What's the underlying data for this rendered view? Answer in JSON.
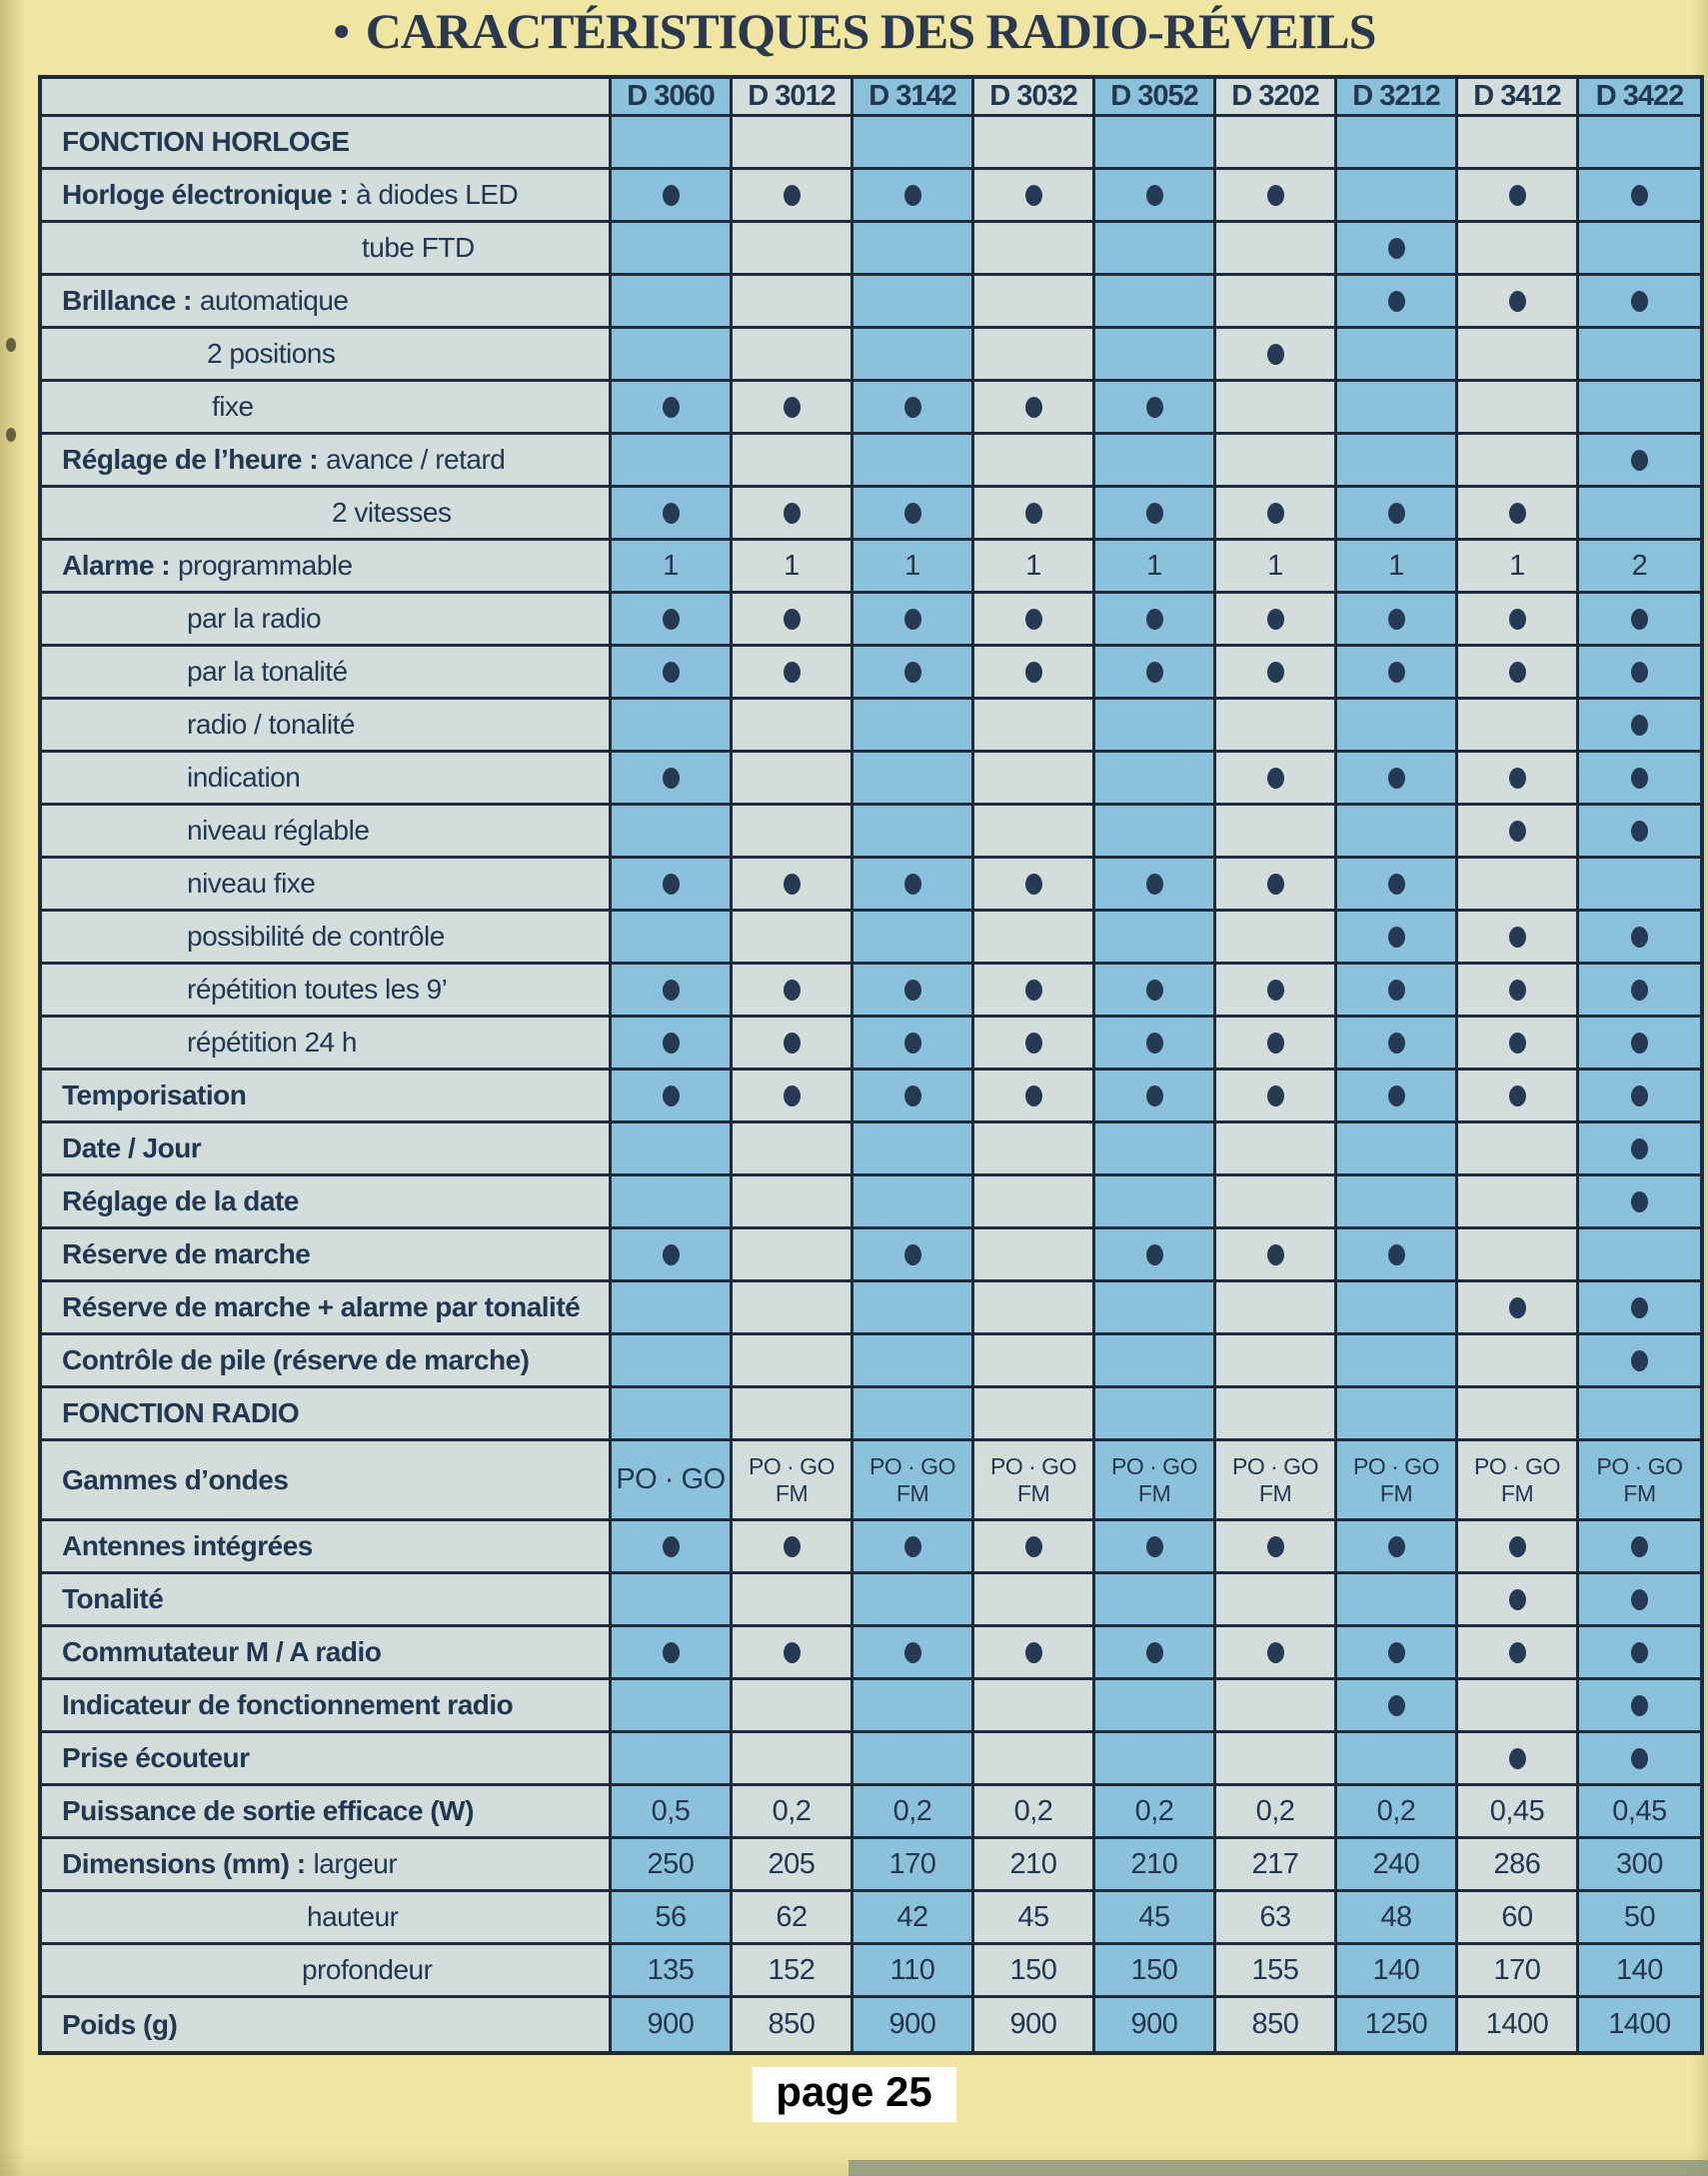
{
  "page": {
    "title": "CARACTÉRISTIQUES DES RADIO-RÉVEILS",
    "title_bullet": "●",
    "page_number": "page 25"
  },
  "table": {
    "columns": [
      "D 3060",
      "D 3012",
      "D 3142",
      "D 3032",
      "D 3052",
      "D 3202",
      "D 3212",
      "D 3412",
      "D 3422"
    ],
    "dot_symbol": "●",
    "rows": [
      {
        "section": true,
        "label_bold": "FONCTION HORLOGE",
        "cells": [
          "",
          "",
          "",
          "",
          "",
          "",
          "",
          "",
          ""
        ]
      },
      {
        "label_bold": "Horloge électronique :",
        "label": "à diodes LED",
        "cells": [
          "●",
          "●",
          "●",
          "●",
          "●",
          "●",
          "",
          "●",
          "●"
        ]
      },
      {
        "label": "tube FTD",
        "indent": 300,
        "cells": [
          "",
          "",
          "",
          "",
          "",
          "",
          "●",
          "",
          ""
        ]
      },
      {
        "label_bold": "Brillance :",
        "label": "automatique",
        "cells": [
          "",
          "",
          "",
          "",
          "",
          "",
          "●",
          "●",
          "●"
        ]
      },
      {
        "label": "2 positions",
        "indent": 145,
        "cells": [
          "",
          "",
          "",
          "",
          "",
          "●",
          "",
          "",
          ""
        ]
      },
      {
        "label": "fixe",
        "indent": 150,
        "cells": [
          "●",
          "●",
          "●",
          "●",
          "●",
          "",
          "",
          "",
          ""
        ]
      },
      {
        "label_bold": "Réglage de l’heure :",
        "label": "avance / retard",
        "cells": [
          "",
          "",
          "",
          "",
          "",
          "",
          "",
          "",
          "●"
        ]
      },
      {
        "label": "2 vitesses",
        "indent": 270,
        "cells": [
          "●",
          "●",
          "●",
          "●",
          "●",
          "●",
          "●",
          "●",
          ""
        ]
      },
      {
        "label_bold": "Alarme :",
        "label": "programmable",
        "cells": [
          "1",
          "1",
          "1",
          "1",
          "1",
          "1",
          "1",
          "1",
          "2"
        ]
      },
      {
        "label": "par la radio",
        "indent": 125,
        "cells": [
          "●",
          "●",
          "●",
          "●",
          "●",
          "●",
          "●",
          "●",
          "●"
        ]
      },
      {
        "label": "par la tonalité",
        "indent": 125,
        "cells": [
          "●",
          "●",
          "●",
          "●",
          "●",
          "●",
          "●",
          "●",
          "●"
        ]
      },
      {
        "label": "radio / tonalité",
        "indent": 125,
        "cells": [
          "",
          "",
          "",
          "",
          "",
          "",
          "",
          "",
          "●"
        ]
      },
      {
        "label": "indication",
        "indent": 125,
        "cells": [
          "●",
          "",
          "",
          "",
          "",
          "●",
          "●",
          "●",
          "●"
        ]
      },
      {
        "label": "niveau réglable",
        "indent": 125,
        "cells": [
          "",
          "",
          "",
          "",
          "",
          "",
          "",
          "●",
          "●"
        ]
      },
      {
        "label": "niveau fixe",
        "indent": 125,
        "cells": [
          "●",
          "●",
          "●",
          "●",
          "●",
          "●",
          "●",
          "",
          ""
        ]
      },
      {
        "label": "possibilité de contrôle",
        "indent": 125,
        "cells": [
          "",
          "",
          "",
          "",
          "",
          "",
          "●",
          "●",
          "●"
        ]
      },
      {
        "label": "répétition toutes les 9’",
        "indent": 125,
        "cells": [
          "●",
          "●",
          "●",
          "●",
          "●",
          "●",
          "●",
          "●",
          "●"
        ]
      },
      {
        "label": "répétition 24 h",
        "indent": 125,
        "cells": [
          "●",
          "●",
          "●",
          "●",
          "●",
          "●",
          "●",
          "●",
          "●"
        ]
      },
      {
        "label_bold": "Temporisation",
        "cells": [
          "●",
          "●",
          "●",
          "●",
          "●",
          "●",
          "●",
          "●",
          "●"
        ]
      },
      {
        "label_bold": "Date / Jour",
        "cells": [
          "",
          "",
          "",
          "",
          "",
          "",
          "",
          "",
          "●"
        ]
      },
      {
        "label_bold": "Réglage de la date",
        "cells": [
          "",
          "",
          "",
          "",
          "",
          "",
          "",
          "",
          "●"
        ]
      },
      {
        "label_bold": "Réserve de marche",
        "cells": [
          "●",
          "",
          "●",
          "",
          "●",
          "●",
          "●",
          "",
          ""
        ]
      },
      {
        "label_bold": "Réserve de marche + alarme par tonalité",
        "cells": [
          "",
          "",
          "",
          "",
          "",
          "",
          "",
          "●",
          "●"
        ]
      },
      {
        "label_bold": "Contrôle de pile (réserve de marche)",
        "cells": [
          "",
          "",
          "",
          "",
          "",
          "",
          "",
          "",
          "●"
        ]
      },
      {
        "section": true,
        "label_bold": "FONCTION RADIO",
        "cells": [
          "",
          "",
          "",
          "",
          "",
          "",
          "",
          "",
          ""
        ]
      },
      {
        "label_bold": "Gammes d’ondes",
        "tall": true,
        "cells": [
          "PO · GO",
          "PO · GO\nFM",
          "PO · GO\nFM",
          "PO · GO\nFM",
          "PO · GO\nFM",
          "PO · GO\nFM",
          "PO · GO\nFM",
          "PO · GO\nFM",
          "PO · GO\nFM"
        ]
      },
      {
        "label_bold": "Antennes intégrées",
        "cells": [
          "●",
          "●",
          "●",
          "●",
          "●",
          "●",
          "●",
          "●",
          "●"
        ]
      },
      {
        "label_bold": "Tonalité",
        "cells": [
          "",
          "",
          "",
          "",
          "",
          "",
          "",
          "●",
          "●"
        ]
      },
      {
        "label_bold": "Commutateur M / A radio",
        "cells": [
          "●",
          "●",
          "●",
          "●",
          "●",
          "●",
          "●",
          "●",
          "●"
        ]
      },
      {
        "label_bold": "Indicateur de fonctionnement radio",
        "cells": [
          "",
          "",
          "",
          "",
          "",
          "",
          "●",
          "",
          "●"
        ]
      },
      {
        "label_bold": "Prise écouteur",
        "cells": [
          "",
          "",
          "",
          "",
          "",
          "",
          "",
          "●",
          "●"
        ]
      },
      {
        "label_bold": "Puissance de sortie efficace (W)",
        "cells": [
          "0,5",
          "0,2",
          "0,2",
          "0,2",
          "0,2",
          "0,2",
          "0,2",
          "0,45",
          "0,45"
        ]
      },
      {
        "label_bold": "Dimensions (mm) :",
        "label": "largeur",
        "cells": [
          "250",
          "205",
          "170",
          "210",
          "210",
          "217",
          "240",
          "286",
          "300"
        ]
      },
      {
        "label": "hauteur",
        "indent": 245,
        "cells": [
          "56",
          "62",
          "42",
          "45",
          "45",
          "63",
          "48",
          "60",
          "50"
        ]
      },
      {
        "label": "profondeur",
        "indent": 240,
        "cells": [
          "135",
          "152",
          "110",
          "150",
          "150",
          "155",
          "140",
          "170",
          "140"
        ]
      },
      {
        "label_bold": "Poids (g)",
        "cells": [
          "900",
          "850",
          "900",
          "900",
          "900",
          "850",
          "1250",
          "1400",
          "1400"
        ]
      }
    ]
  },
  "colors": {
    "page_background": "#f0e6a1",
    "column_blue": "#8cc1db",
    "column_light": "#d2dddc",
    "grid_line": "#1d2b3a",
    "text_navy": "#233750",
    "dot": "#263a53",
    "title": "#2b3950",
    "footer_text": "#000000",
    "footer_background": "#ffffff"
  }
}
